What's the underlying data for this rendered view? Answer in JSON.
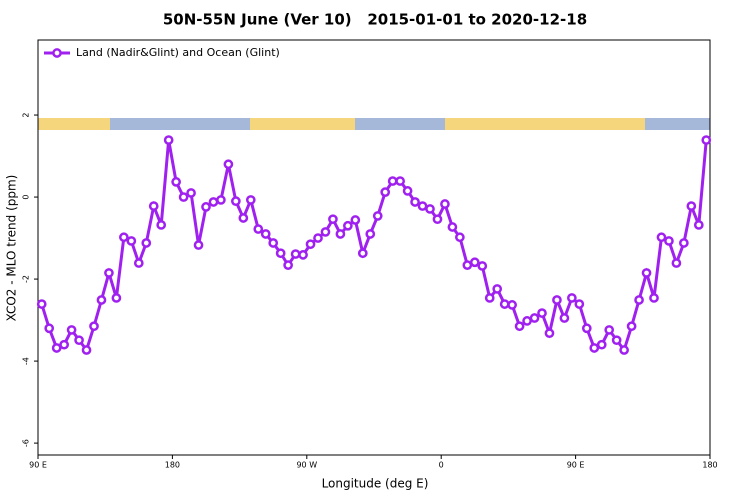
{
  "chart_data": {
    "type": "line",
    "title": "50N-55N June (Ver 10)   2015-01-01 to 2020-12-18",
    "x_label": "Longitude (deg E)",
    "y_label": "XCO2 - MLO trend (ppm)",
    "x": [
      92.5,
      97.5,
      102.5,
      107.5,
      112.5,
      117.5,
      122.5,
      127.5,
      132.5,
      137.5,
      142.5,
      147.5,
      152.5,
      157.5,
      162.5,
      167.5,
      172.5,
      177.5,
      182.5,
      187.5,
      192.5,
      197.5,
      202.5,
      207.5,
      212.5,
      217.5,
      222.5,
      227.5,
      232.5,
      237.5,
      242.5,
      247.5,
      252.5,
      257.5,
      262.5,
      267.5,
      272.5,
      277.5,
      282.5,
      287.5,
      292.5,
      297.5,
      302.5,
      307.5,
      312.5,
      317.5,
      322.5,
      327.5,
      332.5,
      337.5,
      342.5,
      347.5,
      352.5,
      357.5,
      362.5,
      367.5,
      372.5,
      377.5,
      382.5,
      387.5,
      392.5,
      397.5,
      402.5,
      407.5,
      412.5,
      417.5,
      422.5,
      427.5,
      432.5,
      437.5,
      442.5,
      447.5,
      452.5,
      457.5,
      462.5,
      467.5,
      472.5,
      477.5,
      482.5,
      487.5,
      492.5,
      497.5,
      502.5,
      507.5,
      512.5,
      517.5,
      522.5,
      527.5,
      532.5,
      537.5
    ],
    "series": [
      {
        "name": "Land (Nadir&Glint) and Ocean (Glint)",
        "color": "#a020f0",
        "values": [
          -2.61,
          -3.2,
          -3.68,
          -3.6,
          -3.24,
          -3.49,
          -3.73,
          -3.15,
          -2.51,
          -1.85,
          -2.46,
          -0.98,
          -1.07,
          -1.61,
          -1.12,
          -0.22,
          -0.68,
          1.39,
          0.37,
          0,
          0.1,
          -1.17,
          -0.24,
          -0.12,
          -0.07,
          0.8,
          -0.1,
          -0.51,
          -0.07,
          -0.78,
          -0.9,
          -1.12,
          -1.37,
          -1.66,
          -1.39,
          -1.41,
          -1.15,
          -1.0,
          -0.85,
          -0.54,
          -0.9,
          -0.7,
          -0.56,
          -1.37,
          -0.9,
          -0.46,
          0.12,
          0.39,
          0.39,
          0.15,
          -0.12,
          -0.22,
          -0.29,
          -0.54,
          -0.17,
          -0.73,
          -0.98,
          -1.66,
          -1.59,
          -1.68,
          -2.46,
          -2.24,
          -2.61,
          -2.63,
          -3.15,
          -3.02,
          -2.95,
          -2.83,
          -3.32,
          -2.51,
          -2.95,
          -2.46,
          -2.61,
          -3.2,
          -3.68,
          -3.6,
          -3.24,
          -3.49,
          -3.73,
          -3.15,
          -2.51,
          -1.85,
          -2.46,
          -0.98,
          -1.07,
          -1.61,
          -1.12,
          -0.22,
          -0.68,
          1.39
        ]
      }
    ],
    "xlim": [
      90,
      540
    ],
    "xticks": [
      {
        "value": 90,
        "label": "90 E"
      },
      180,
      {
        "value": 270,
        "label": "90 W"
      },
      {
        "value": 360,
        "label": "0"
      },
      {
        "value": 450,
        "label": "90 E"
      },
      {
        "value": 540,
        "label": "180"
      }
    ],
    "ylim": [
      -6.29,
      3.83
    ],
    "yticks": [
      2,
      0,
      -2,
      -4,
      -6
    ],
    "legend": "top-left"
  }
}
